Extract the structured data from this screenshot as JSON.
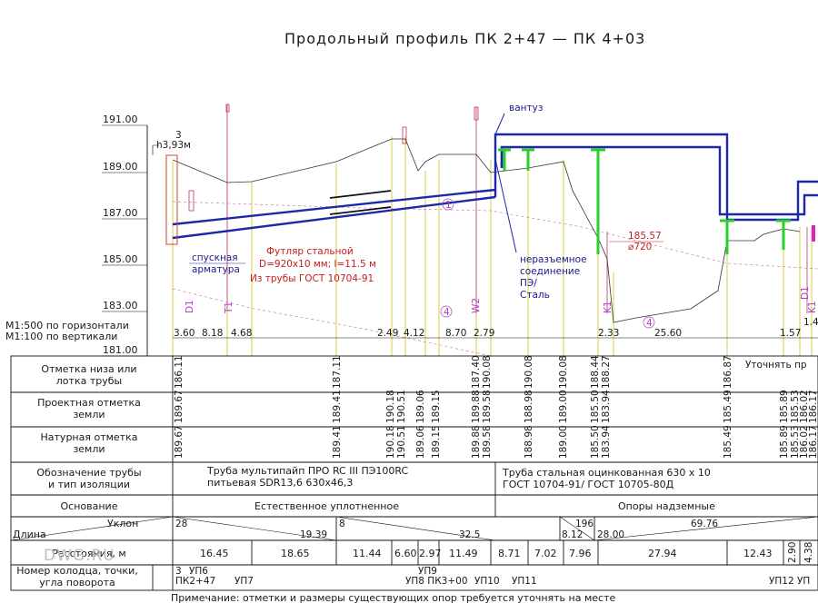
{
  "title": "Продольный профиль ПК 2+47 — ПК 4+03",
  "scale": {
    "horizontal": "М1:500 по горизонтали",
    "vertical": "М1:100 по вертикали"
  },
  "elevation_axis": [
    "191.00",
    "189.00",
    "187.00",
    "185.00",
    "183.00",
    "181.00"
  ],
  "annotations": {
    "depth_num": "3",
    "depth": "h3,93м",
    "ventuz": "вантуз",
    "spusk1": "спускная",
    "spusk2": "арматура",
    "futlyar1": "Футляр стальной",
    "futlyar2": "D=920x10 мм; l=11.5 м",
    "futlyar3": "Из трубы ГОСТ 10704-91",
    "conn1": "неразъемное",
    "conn2": "соединение",
    "conn3": "ПЭ/",
    "conn4": "Сталь",
    "elev_mark": "185.57",
    "diam_mark": "⌀720",
    "circle1": "1",
    "circle4a": "4",
    "circle4b": "4",
    "utochn": "Уточнять пр"
  },
  "vert_tags": [
    "D1",
    "T1",
    "W2",
    "K1",
    "D1",
    "K1",
    "D1"
  ],
  "dims": [
    "3.60",
    "8.18",
    "4.68",
    "2.49",
    "4.12",
    "8.70",
    "2.79",
    "2.33",
    "25.60",
    "1.57",
    "1.4"
  ],
  "rows": {
    "invert_label": [
      "Отметка низа или",
      "лотка трубы"
    ],
    "design_label": [
      "Проектная отметка",
      "земли"
    ],
    "natural_label": [
      "Натурная отметка",
      "земли"
    ],
    "pipe_label": [
      "Обозначение трубы",
      "и тип изоляции"
    ],
    "base_label": "Основание",
    "slope_label": "Уклон",
    "length_label": "Длина",
    "dist_label": "Расстояния, м",
    "well_label": [
      "Номер колодца, точки,",
      "угла поворота"
    ]
  },
  "invert_values": [
    "186.11",
    "187.11",
    "187.40",
    "190.08",
    "190.08",
    "190.08",
    "188.44",
    "188.27",
    "186.87"
  ],
  "design_values": [
    "189.67",
    "189.41",
    "190.18",
    "190.51",
    "189.06",
    "189.15",
    "189.88",
    "189.58",
    "188.98",
    "189.00",
    "185.50",
    "183.94",
    "185.49",
    "185.89",
    "185.53",
    "186.02",
    "186.17"
  ],
  "natural_values": [
    "189.67",
    "189.41",
    "190.18",
    "190.51",
    "189.06",
    "189.15",
    "189.88",
    "189.58",
    "188.98",
    "189.00",
    "185.50",
    "183.94",
    "185.49",
    "185.89",
    "185.53",
    "186.02",
    "186.17"
  ],
  "pipe": {
    "left1": "Труба мультипайп  ПРО RC III  ПЭ100RC",
    "left2": "питьевая SDR13,6  630x46,3",
    "right1": "Труба стальная оцинкованная 630 х 10",
    "right2": "ГОСТ 10704-91/  ГОСТ 10705-80Д"
  },
  "base": {
    "left": "Естественное уплотненное",
    "right": "Опоры надземные"
  },
  "slopes": [
    {
      "slope": "28",
      "length": "19.39"
    },
    {
      "slope": "8",
      "length": "32.5"
    },
    {
      "slope": "196",
      "length": "8.12"
    },
    {
      "slope": "28.00",
      "length": ""
    },
    {
      "slope": "",
      "length": "69.76"
    }
  ],
  "distances": [
    "16.45",
    "18.65",
    "11.44",
    "6.60",
    "2.97",
    "11.49",
    "8.71",
    "7.02",
    "7.96",
    "27.94",
    "12.43",
    "2.90",
    "4.38"
  ],
  "wells": {
    "top": [
      "3",
      "УП6",
      "УП9"
    ],
    "bottom": [
      "ПК2+47",
      "УП7",
      "УП8 ПК3+00",
      "УП10",
      "УП11",
      "УП12",
      "УП"
    ]
  },
  "watermark": "DWG.RU",
  "note": "Примечание: отметки и размеры существующих опор требуется уточнять на месте"
}
